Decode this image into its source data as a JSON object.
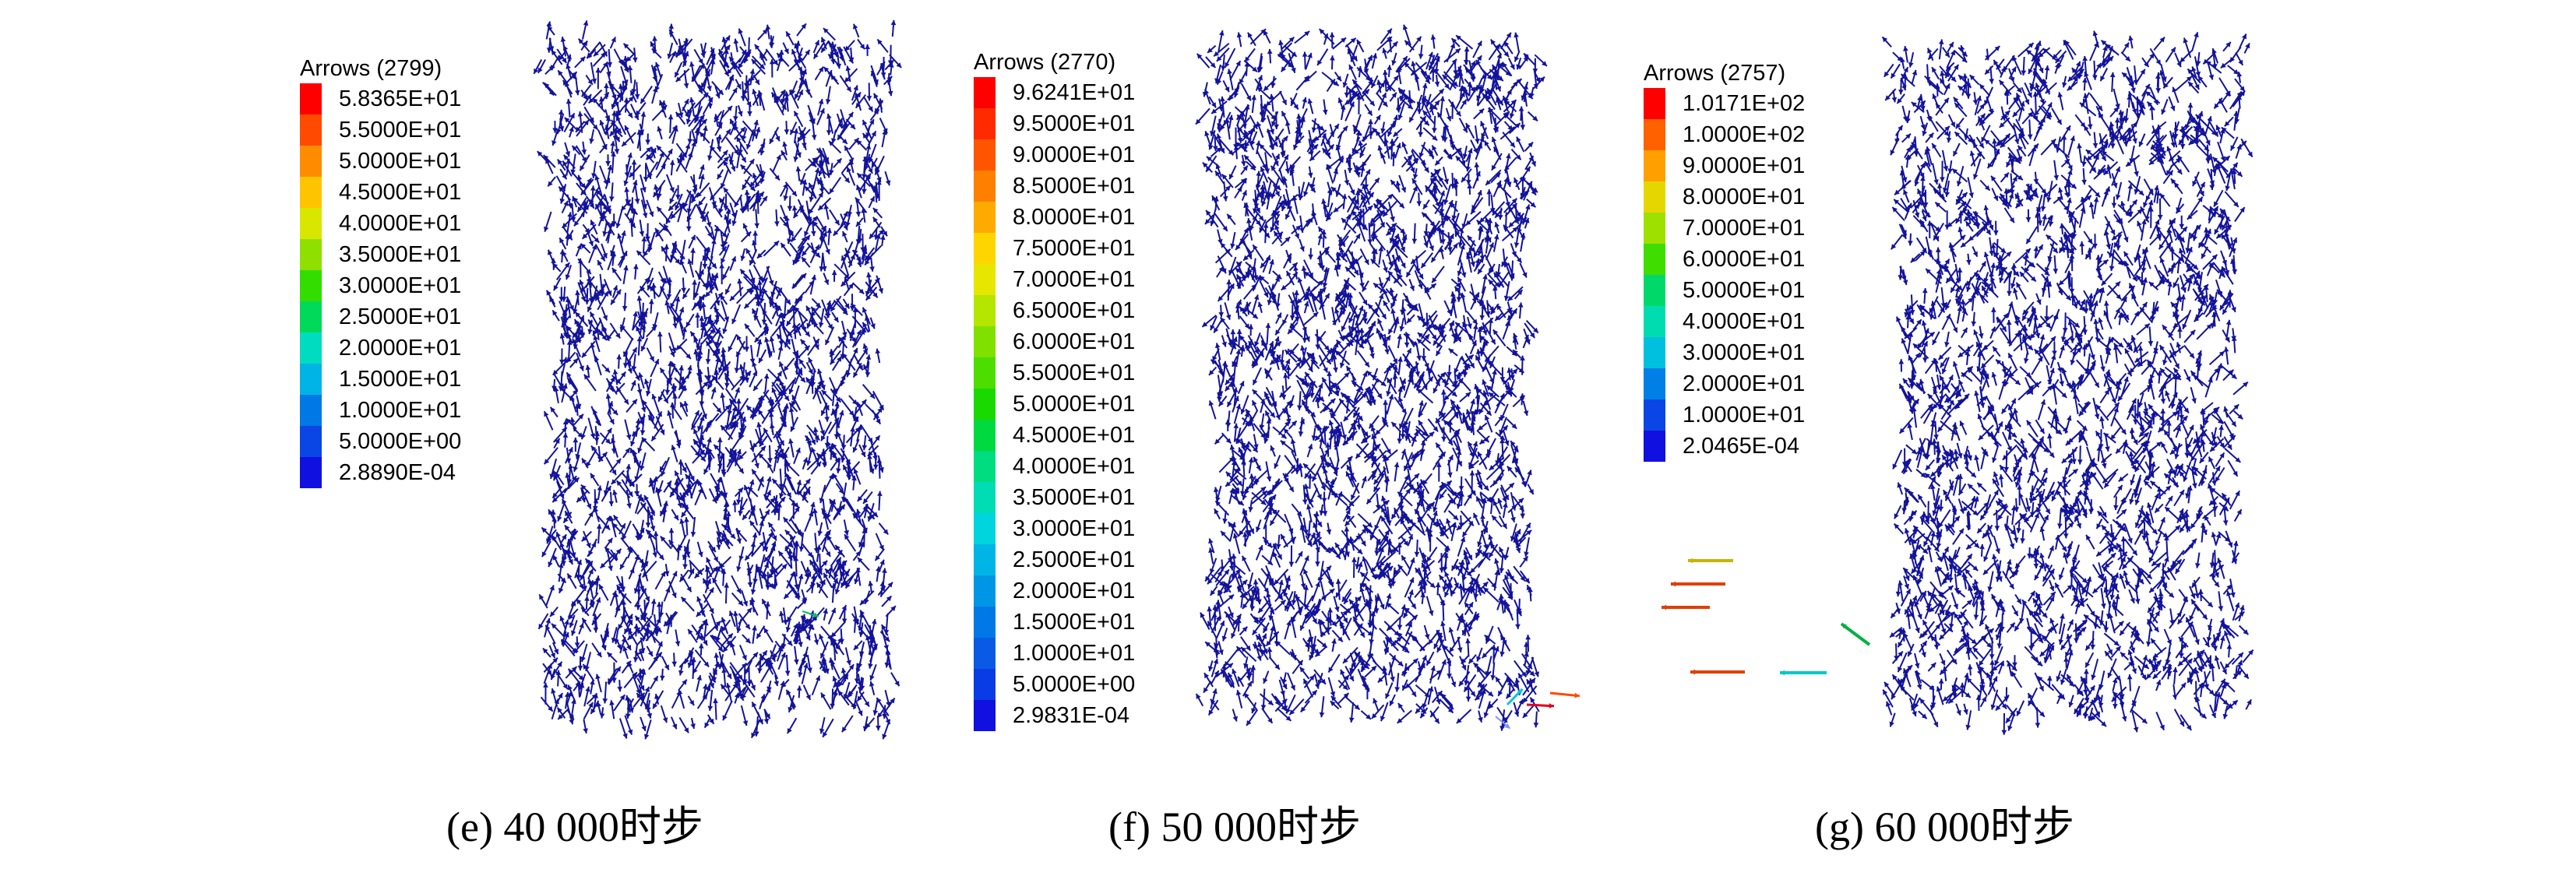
{
  "panels": [
    {
      "id": "e",
      "legend_title": "Arrows (2799)",
      "legend": [
        {
          "label": "5.8365E+01",
          "color": "#ff0000"
        },
        {
          "label": "5.5000E+01",
          "color": "#ff4a00"
        },
        {
          "label": "5.0000E+01",
          "color": "#ff8c00"
        },
        {
          "label": "4.5000E+01",
          "color": "#ffc400"
        },
        {
          "label": "4.0000E+01",
          "color": "#d9e600"
        },
        {
          "label": "3.5000E+01",
          "color": "#8fe000"
        },
        {
          "label": "3.0000E+01",
          "color": "#33dd00"
        },
        {
          "label": "2.5000E+01",
          "color": "#00d95a"
        },
        {
          "label": "2.0000E+01",
          "color": "#00dcc0"
        },
        {
          "label": "1.5000E+01",
          "color": "#00b4e6"
        },
        {
          "label": "1.0000E+01",
          "color": "#0078e6"
        },
        {
          "label": "5.0000E+00",
          "color": "#0a46e6"
        },
        {
          "label": "2.8890E-04",
          "color": "#1010e0"
        }
      ],
      "caption": "(e) 40 000时步"
    },
    {
      "id": "f",
      "legend_title": "Arrows (2770)",
      "legend": [
        {
          "label": "9.6241E+01",
          "color": "#ff0000"
        },
        {
          "label": "9.5000E+01",
          "color": "#ff2a00"
        },
        {
          "label": "9.0000E+01",
          "color": "#ff5500"
        },
        {
          "label": "8.5000E+01",
          "color": "#ff8000"
        },
        {
          "label": "8.0000E+01",
          "color": "#ffaa00"
        },
        {
          "label": "7.5000E+01",
          "color": "#ffd500"
        },
        {
          "label": "7.0000E+01",
          "color": "#e6e600"
        },
        {
          "label": "6.5000E+01",
          "color": "#b4e600"
        },
        {
          "label": "6.0000E+01",
          "color": "#80e000"
        },
        {
          "label": "5.5000E+01",
          "color": "#4ddd00"
        },
        {
          "label": "5.0000E+01",
          "color": "#1ad900"
        },
        {
          "label": "4.5000E+01",
          "color": "#00d940"
        },
        {
          "label": "4.0000E+01",
          "color": "#00dc80"
        },
        {
          "label": "3.5000E+01",
          "color": "#00dcb4"
        },
        {
          "label": "3.0000E+01",
          "color": "#00d4dc"
        },
        {
          "label": "2.5000E+01",
          "color": "#00b4e6"
        },
        {
          "label": "2.0000E+01",
          "color": "#0096e6"
        },
        {
          "label": "1.5000E+01",
          "color": "#0078e6"
        },
        {
          "label": "1.0000E+01",
          "color": "#0a5ae6"
        },
        {
          "label": "5.0000E+00",
          "color": "#0a3ce6"
        },
        {
          "label": "2.9831E-04",
          "color": "#1010e0"
        }
      ],
      "caption": "(f) 50 000时步"
    },
    {
      "id": "g",
      "legend_title": "Arrows (2757)",
      "legend": [
        {
          "label": "1.0171E+02",
          "color": "#ff0000"
        },
        {
          "label": "1.0000E+02",
          "color": "#ff6000"
        },
        {
          "label": "9.0000E+01",
          "color": "#ffa000"
        },
        {
          "label": "8.0000E+01",
          "color": "#e6d600"
        },
        {
          "label": "7.0000E+01",
          "color": "#9ee000"
        },
        {
          "label": "6.0000E+01",
          "color": "#40dd00"
        },
        {
          "label": "5.0000E+01",
          "color": "#00d96a"
        },
        {
          "label": "4.0000E+01",
          "color": "#00dcb0"
        },
        {
          "label": "3.0000E+01",
          "color": "#00c0e0"
        },
        {
          "label": "2.0000E+01",
          "color": "#0080e6"
        },
        {
          "label": "1.0000E+01",
          "color": "#0a46e6"
        },
        {
          "label": "2.0465E-04",
          "color": "#1010e0"
        }
      ],
      "caption": "(g) 60 000时步"
    }
  ],
  "colors": {
    "arrow_main": "#13139a",
    "text": "#000000",
    "background": "#ffffff"
  }
}
